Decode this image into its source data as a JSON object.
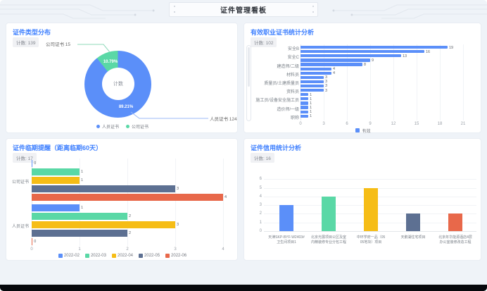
{
  "page": {
    "title": "证件管理看板"
  },
  "panels": {
    "pie": {
      "title": "证件类型分布",
      "badge": "计数: 139"
    },
    "hbar": {
      "title": "有效职业证书统计分析",
      "badge": "计数: 102"
    },
    "grouped": {
      "title": "证件临期提醒（距离临期60天）",
      "badge": "计数: 17"
    },
    "vbar": {
      "title": "证件信用统计分析",
      "badge": "计数: 16"
    }
  },
  "colors": {
    "blue": "#5B8FF9",
    "green": "#5AD8A6",
    "yellow": "#F6BD16",
    "slate": "#5D7092",
    "red": "#E8684A",
    "title_blue": "#3D7FFF"
  },
  "chart_data": [
    {
      "id": "pie",
      "type": "pie",
      "title": "证件类型分布",
      "center_label": "计数",
      "total": 139,
      "slices": [
        {
          "name": "人员证书",
          "value": 124,
          "pct": "89.21%",
          "color": "#5B8FF9"
        },
        {
          "name": "公司证书",
          "value": 15,
          "pct": "10.79%",
          "color": "#5AD8A6"
        }
      ],
      "callouts": [
        "公司证书 15",
        "人员证书 124"
      ],
      "legend": [
        "人员证书",
        "公司证书"
      ],
      "legend_position": "bottom"
    },
    {
      "id": "hbar",
      "type": "bar",
      "orientation": "horizontal",
      "title": "有效职业证书统计分析",
      "categories": [
        "安全B",
        "",
        "安全C",
        "",
        "建造师/二级",
        "",
        "材料员",
        "",
        "质量员/土建质量员",
        "",
        "资料员",
        "",
        "施工员/设备安全施工员",
        "",
        "造价师/一级",
        "",
        "职称"
      ],
      "values": [
        19,
        16,
        13,
        9,
        8,
        4,
        4,
        3,
        3,
        3,
        3,
        1,
        1,
        1,
        1,
        1,
        1
      ],
      "color": "#5B8FF9",
      "xticks": [
        0,
        3,
        6,
        9,
        12,
        15,
        18,
        21
      ],
      "xlim": [
        0,
        21
      ],
      "grid": true,
      "legend": [
        "有效"
      ],
      "legend_position": "bottom",
      "scrollbar": true
    },
    {
      "id": "grouped",
      "type": "bar",
      "orientation": "horizontal",
      "title": "证件临期提醒（距离临期60天）",
      "categories": [
        "公司证书",
        "人员证书"
      ],
      "series": [
        {
          "name": "2022-02",
          "color": "#5B8FF9",
          "values": [
            0,
            1
          ]
        },
        {
          "name": "2022-03",
          "color": "#5AD8A6",
          "values": [
            1,
            2
          ]
        },
        {
          "name": "2022-04",
          "color": "#F6BD16",
          "values": [
            1,
            3
          ]
        },
        {
          "name": "2022-05",
          "color": "#5D7092",
          "values": [
            3,
            2
          ]
        },
        {
          "name": "2022-06",
          "color": "#E8684A",
          "values": [
            4,
            0
          ]
        }
      ],
      "xticks": [
        0,
        1,
        2,
        3,
        4
      ],
      "xlim": [
        0,
        4
      ],
      "grid": true,
      "legend_position": "bottom"
    },
    {
      "id": "vbar",
      "type": "bar",
      "orientation": "vertical",
      "title": "证件信用统计分析",
      "categories": [
        [
          "天津SKP-BYF-W2403#",
          "卫生间项目1"
        ],
        [
          "北京光展项目公区及室",
          "内精装修专业分包工程"
        ],
        [
          "中环学府一品（05",
          "05地块）项目"
        ],
        [
          "天鹅湖住宅项目",
          ""
        ],
        [
          "北京年华能源酒店4层",
          "办公室装修改造工程"
        ]
      ],
      "values": [
        3,
        4,
        5,
        2,
        2
      ],
      "colors": [
        "#5B8FF9",
        "#5AD8A6",
        "#F6BD16",
        "#5D7092",
        "#E8684A"
      ],
      "yticks": [
        0,
        1,
        2,
        3,
        4,
        5,
        6
      ],
      "ylim": [
        0,
        6
      ],
      "grid": true
    }
  ]
}
